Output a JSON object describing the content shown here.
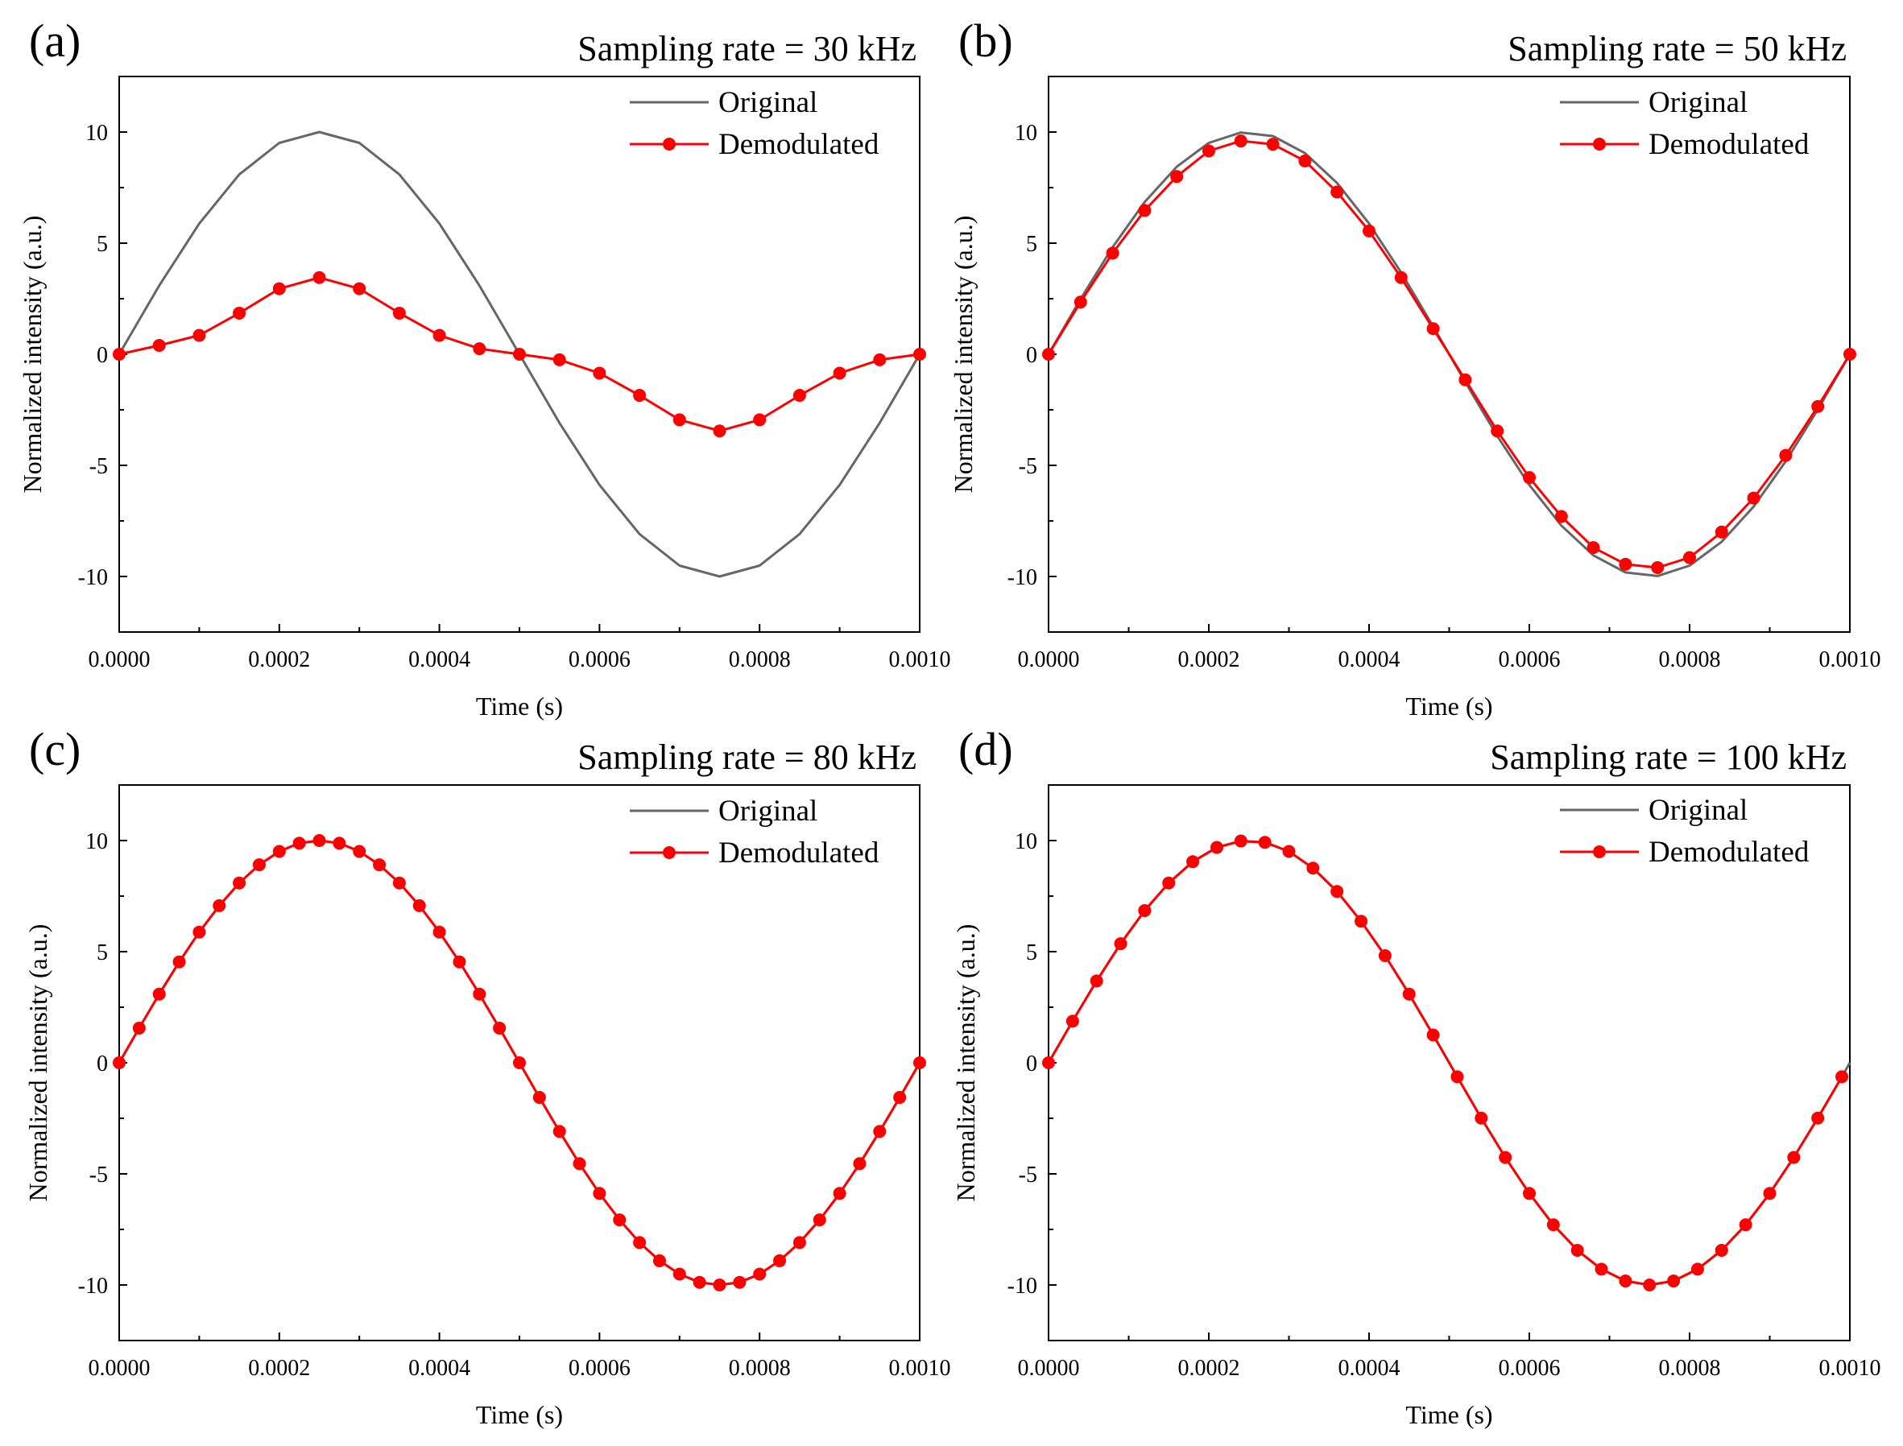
{
  "chart_data": [
    {
      "type": "line",
      "panel_label": "(a)",
      "title": "Sampling rate = 30 kHz",
      "xlabel": "Time (s)",
      "ylabel": "Normalized intensity (a.u.)",
      "xlim": [
        0,
        0.001
      ],
      "ylim": [
        -12.5,
        12.5
      ],
      "xticks": [
        "0.0000",
        "0.0002",
        "0.0004",
        "0.0006",
        "0.0008",
        "0.0010"
      ],
      "yticks": [
        "10",
        "5",
        "0",
        "-5",
        "-10"
      ],
      "legend": [
        "Original",
        "Demodulated"
      ],
      "legend_position": "top-right",
      "series": [
        {
          "name": "Original",
          "color": "#666666",
          "markers": false,
          "x": [
            0,
            5e-05,
            0.0001,
            0.00015,
            0.0002,
            0.00025,
            0.0003,
            0.00035,
            0.0004,
            0.00045,
            0.0005,
            0.00055,
            0.0006,
            0.00065,
            0.0007,
            0.00075,
            0.0008,
            0.00085,
            0.0009,
            0.00095,
            0.001
          ],
          "y": [
            0,
            3.09,
            5.88,
            8.09,
            9.51,
            10,
            9.51,
            8.09,
            5.88,
            3.09,
            0,
            -3.09,
            -5.88,
            -8.09,
            -9.51,
            -10,
            -9.51,
            -8.09,
            -5.88,
            -3.09,
            0
          ]
        },
        {
          "name": "Demodulated",
          "color": "#ff0000",
          "markers": true,
          "x": [
            0,
            5e-05,
            0.0001,
            0.00015,
            0.0002,
            0.00025,
            0.0003,
            0.00035,
            0.0004,
            0.00045,
            0.0005,
            0.00055,
            0.0006,
            0.00065,
            0.0007,
            0.00075,
            0.0008,
            0.00085,
            0.0009,
            0.00095,
            0.001
          ],
          "y": [
            0,
            0.4,
            0.85,
            1.85,
            2.95,
            3.45,
            2.95,
            1.85,
            0.85,
            0.25,
            0,
            -0.25,
            -0.85,
            -1.85,
            -2.95,
            -3.45,
            -2.95,
            -1.85,
            -0.85,
            -0.25,
            0
          ]
        }
      ]
    },
    {
      "type": "line",
      "panel_label": "(b)",
      "title": "Sampling rate = 50 kHz",
      "xlabel": "Time (s)",
      "ylabel": "Normalized intensity (a.u.)",
      "xlim": [
        0,
        0.001
      ],
      "ylim": [
        -12.5,
        12.5
      ],
      "xticks": [
        "0.0000",
        "0.0002",
        "0.0004",
        "0.0006",
        "0.0008",
        "0.0010"
      ],
      "yticks": [
        "10",
        "5",
        "0",
        "-5",
        "-10"
      ],
      "legend": [
        "Original",
        "Demodulated"
      ],
      "legend_position": "top-right",
      "series": [
        {
          "name": "Original",
          "color": "#666666",
          "markers": false,
          "x": [
            0,
            4e-05,
            8e-05,
            0.00012,
            0.00016,
            0.0002,
            0.00024,
            0.00028,
            0.00032,
            0.00036,
            0.0004,
            0.00044,
            0.00048,
            0.00052,
            0.00056,
            0.0006,
            0.00064,
            0.00068,
            0.00072,
            0.00076,
            0.0008,
            0.00084,
            0.00088,
            0.00092,
            0.00096,
            0.001
          ],
          "y": [
            0,
            2.49,
            4.82,
            6.85,
            8.44,
            9.51,
            9.98,
            9.82,
            9.05,
            7.71,
            5.88,
            3.68,
            1.25,
            -1.25,
            -3.68,
            -5.88,
            -7.71,
            -9.05,
            -9.82,
            -9.98,
            -9.51,
            -8.44,
            -6.85,
            -4.82,
            -2.49,
            0
          ]
        },
        {
          "name": "Demodulated",
          "color": "#ff0000",
          "markers": true,
          "x": [
            0,
            4e-05,
            8e-05,
            0.00012,
            0.00016,
            0.0002,
            0.00024,
            0.00028,
            0.00032,
            0.00036,
            0.0004,
            0.00044,
            0.00048,
            0.00052,
            0.00056,
            0.0006,
            0.00064,
            0.00068,
            0.00072,
            0.00076,
            0.0008,
            0.00084,
            0.00088,
            0.00092,
            0.00096,
            0.001
          ],
          "y": [
            0,
            2.35,
            4.55,
            6.47,
            8.0,
            9.15,
            9.6,
            9.45,
            8.7,
            7.3,
            5.55,
            3.45,
            1.15,
            -1.15,
            -3.45,
            -5.55,
            -7.3,
            -8.7,
            -9.45,
            -9.6,
            -9.15,
            -8.0,
            -6.47,
            -4.55,
            -2.35,
            0
          ]
        }
      ]
    },
    {
      "type": "line",
      "panel_label": "(c)",
      "title": "Sampling rate = 80 kHz",
      "xlabel": "Time (s)",
      "ylabel": "Normalized intensity (a.u.)",
      "xlim": [
        0,
        0.001
      ],
      "ylim": [
        -12.5,
        12.5
      ],
      "xticks": [
        "0.0000",
        "0.0002",
        "0.0004",
        "0.0006",
        "0.0008",
        "0.0010"
      ],
      "yticks": [
        "10",
        "5",
        "0",
        "-5",
        "-10"
      ],
      "legend": [
        "Original",
        "Demodulated"
      ],
      "legend_position": "top-right",
      "series": [
        {
          "name": "Original",
          "color": "#666666",
          "markers": false,
          "x": [
            0,
            2.5e-05,
            5e-05,
            7.5e-05,
            0.0001,
            0.000125,
            0.00015,
            0.000175,
            0.0002,
            0.000225,
            0.00025,
            0.000275,
            0.0003,
            0.000325,
            0.00035,
            0.000375,
            0.0004,
            0.000425,
            0.00045,
            0.000475,
            0.0005,
            0.000525,
            0.00055,
            0.000575,
            0.0006,
            0.000625,
            0.00065,
            0.000675,
            0.0007,
            0.000725,
            0.00075,
            0.000775,
            0.0008,
            0.000825,
            0.00085,
            0.000875,
            0.0009,
            0.000925,
            0.00095,
            0.000975,
            0.001
          ],
          "y": [
            0,
            1.56,
            3.09,
            4.54,
            5.88,
            7.07,
            8.09,
            8.91,
            9.51,
            9.88,
            10,
            9.88,
            9.51,
            8.91,
            8.09,
            7.07,
            5.88,
            4.54,
            3.09,
            1.56,
            0,
            -1.56,
            -3.09,
            -4.54,
            -5.88,
            -7.07,
            -8.09,
            -8.91,
            -9.51,
            -9.88,
            -10,
            -9.88,
            -9.51,
            -8.91,
            -8.09,
            -7.07,
            -5.88,
            -4.54,
            -3.09,
            -1.56,
            0
          ]
        },
        {
          "name": "Demodulated",
          "color": "#ff0000",
          "markers": true,
          "x": [
            0,
            2.5e-05,
            5e-05,
            7.5e-05,
            0.0001,
            0.000125,
            0.00015,
            0.000175,
            0.0002,
            0.000225,
            0.00025,
            0.000275,
            0.0003,
            0.000325,
            0.00035,
            0.000375,
            0.0004,
            0.000425,
            0.00045,
            0.000475,
            0.0005,
            0.000525,
            0.00055,
            0.000575,
            0.0006,
            0.000625,
            0.00065,
            0.000675,
            0.0007,
            0.000725,
            0.00075,
            0.000775,
            0.0008,
            0.000825,
            0.00085,
            0.000875,
            0.0009,
            0.000925,
            0.00095,
            0.000975,
            0.001
          ],
          "y": [
            0,
            1.56,
            3.09,
            4.54,
            5.88,
            7.07,
            8.09,
            8.91,
            9.51,
            9.88,
            10,
            9.88,
            9.51,
            8.91,
            8.09,
            7.07,
            5.88,
            4.54,
            3.09,
            1.56,
            0,
            -1.56,
            -3.09,
            -4.54,
            -5.88,
            -7.07,
            -8.09,
            -8.91,
            -9.51,
            -9.88,
            -10,
            -9.88,
            -9.51,
            -8.91,
            -8.09,
            -7.07,
            -5.88,
            -4.54,
            -3.09,
            -1.56,
            0
          ]
        }
      ]
    },
    {
      "type": "line",
      "panel_label": "(d)",
      "title": "Sampling rate = 100 kHz",
      "xlabel": "Time (s)",
      "ylabel": "Normalized intensity (a.u.)",
      "xlim": [
        0,
        0.001
      ],
      "ylim": [
        -12.5,
        12.5
      ],
      "xticks": [
        "0.0000",
        "0.0002",
        "0.0004",
        "0.0006",
        "0.0008",
        "0.0010"
      ],
      "yticks": [
        "10",
        "5",
        "0",
        "-5",
        "-10"
      ],
      "legend": [
        "Original",
        "Demodulated"
      ],
      "legend_position": "top-right",
      "series": [
        {
          "name": "Original",
          "color": "#666666",
          "markers": false,
          "x": [
            0,
            3e-05,
            6e-05,
            9e-05,
            0.00012,
            0.00015,
            0.00018,
            0.00021,
            0.00024,
            0.00027,
            0.0003,
            0.00033,
            0.00036,
            0.00039,
            0.00042,
            0.00045,
            0.00048,
            0.00051,
            0.00054,
            0.00057,
            0.0006,
            0.00063,
            0.00066,
            0.00069,
            0.00072,
            0.00075,
            0.00078,
            0.00081,
            0.00084,
            0.00087,
            0.0009,
            0.00093,
            0.00096,
            0.00099,
            0.001
          ],
          "y": [
            0,
            1.87,
            3.68,
            5.36,
            6.85,
            8.09,
            9.05,
            9.69,
            9.98,
            9.92,
            9.51,
            8.76,
            7.71,
            6.37,
            4.82,
            3.09,
            1.25,
            -0.63,
            -2.49,
            -4.26,
            -5.88,
            -7.29,
            -8.44,
            -9.29,
            -9.82,
            -10,
            -9.82,
            -9.29,
            -8.44,
            -7.29,
            -5.88,
            -4.26,
            -2.49,
            -0.63,
            0
          ]
        },
        {
          "name": "Demodulated",
          "color": "#ff0000",
          "markers": true,
          "x": [
            0,
            3e-05,
            6e-05,
            9e-05,
            0.00012,
            0.00015,
            0.00018,
            0.00021,
            0.00024,
            0.00027,
            0.0003,
            0.00033,
            0.00036,
            0.00039,
            0.00042,
            0.00045,
            0.00048,
            0.00051,
            0.00054,
            0.00057,
            0.0006,
            0.00063,
            0.00066,
            0.00069,
            0.00072,
            0.00075,
            0.00078,
            0.00081,
            0.00084,
            0.00087,
            0.0009,
            0.00093,
            0.00096,
            0.00099
          ],
          "y": [
            0,
            1.87,
            3.68,
            5.36,
            6.85,
            8.09,
            9.05,
            9.69,
            9.98,
            9.92,
            9.51,
            8.76,
            7.71,
            6.37,
            4.82,
            3.09,
            1.25,
            -0.63,
            -2.49,
            -4.26,
            -5.88,
            -7.29,
            -8.44,
            -9.29,
            -9.82,
            -10,
            -9.82,
            -9.29,
            -8.44,
            -7.29,
            -5.88,
            -4.26,
            -2.49,
            -0.63
          ]
        }
      ]
    }
  ]
}
